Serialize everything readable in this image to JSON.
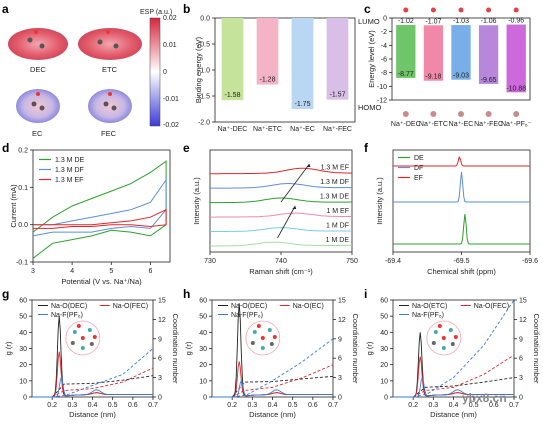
{
  "figure": {
    "watermark": "ybx8.cn",
    "panel_letters": [
      "a",
      "b",
      "c",
      "d",
      "e",
      "f",
      "g",
      "h",
      "i"
    ]
  },
  "panel_a": {
    "molecule_labels": [
      "DEC",
      "ETC",
      "EC",
      "FEC"
    ],
    "colorbar_label": "ESP (a.u.)",
    "colorbar_ticks": [
      "0.02",
      "0.01",
      "0",
      "-0.01",
      "-0.02"
    ]
  },
  "chart_data": [
    {
      "id": "b",
      "type": "bar",
      "categories": [
        "Na⁺-DEC",
        "Na⁺-ETC",
        "Na⁺-EC",
        "Na⁺-FEC"
      ],
      "values": [
        -1.58,
        -1.28,
        -1.75,
        -1.57
      ],
      "value_labels": [
        "-1.58",
        "-1.28",
        "-1.75",
        "-1.57"
      ],
      "colors": [
        "#c5e39a",
        "#f5b3c8",
        "#b9d6f2",
        "#d8bfe8"
      ],
      "ylabel": "Binding energy (eV)",
      "ylim": [
        -2.0,
        0
      ],
      "yticks": [
        "0.0",
        "-0.5",
        "-1.0",
        "-1.5",
        "-2.0"
      ]
    },
    {
      "id": "c",
      "type": "bar",
      "categories": [
        "Na⁺-DEC",
        "Na⁺-ETC",
        "Na⁺-EC",
        "Na⁺-FEC",
        "Na⁺-PF₆⁻"
      ],
      "lumo": [
        -1.02,
        -1.07,
        -1.03,
        -1.06,
        -0.96
      ],
      "homo": [
        -8.77,
        -9.18,
        -9.03,
        -9.65,
        -10.88
      ],
      "lumo_labels": [
        "-1.02",
        "-1.07",
        "-1.03",
        "-1.06",
        "-0.96"
      ],
      "homo_labels": [
        "-8.77",
        "-9.18",
        "-9.03",
        "-9.65",
        "-10.88"
      ],
      "colors": [
        "#5fbf5a",
        "#f07aa0",
        "#6aa6e6",
        "#b07ad8",
        "#c75ad8"
      ],
      "ylabel": "Energy level (eV)",
      "ylim": [
        -12,
        0
      ],
      "yticks": [
        "0",
        "-2",
        "-4",
        "-6",
        "-8",
        "-10",
        "-12"
      ],
      "annotations": [
        "LUMO",
        "HOMO"
      ]
    },
    {
      "id": "d",
      "type": "line",
      "xlabel": "Potential (V vs. Na⁺/Na)",
      "ylabel": "Current (mA)",
      "xlim": [
        3,
        6.5
      ],
      "ylim": [
        -0.1,
        0.2
      ],
      "xticks": [
        "3",
        "4",
        "5",
        "6"
      ],
      "yticks": [
        "-0.1",
        "0.0",
        "0.1",
        "0.2"
      ],
      "series": [
        {
          "name": "1.3 M DE",
          "color": "#2ca02c",
          "upper": [
            [
              3.0,
              -0.02
            ],
            [
              3.5,
              0.02
            ],
            [
              4.0,
              0.05
            ],
            [
              4.5,
              0.07
            ],
            [
              5.0,
              0.09
            ],
            [
              5.5,
              0.11
            ],
            [
              6.0,
              0.14
            ],
            [
              6.4,
              0.17
            ]
          ],
          "lower": [
            [
              6.4,
              0.0
            ],
            [
              6.0,
              -0.03
            ],
            [
              5.5,
              -0.02
            ],
            [
              5.0,
              -0.015
            ],
            [
              4.5,
              -0.03
            ],
            [
              4.0,
              -0.04
            ],
            [
              3.5,
              -0.05
            ],
            [
              3.0,
              -0.09
            ]
          ]
        },
        {
          "name": "1.3 M DF",
          "color": "#5b8fd6",
          "upper": [
            [
              3.0,
              0.0
            ],
            [
              3.5,
              0.0
            ],
            [
              4.0,
              0.01
            ],
            [
              4.5,
              0.02
            ],
            [
              5.0,
              0.03
            ],
            [
              5.5,
              0.04
            ],
            [
              6.0,
              0.06
            ],
            [
              6.4,
              0.12
            ]
          ],
          "lower": [
            [
              6.4,
              0.04
            ],
            [
              6.0,
              -0.01
            ],
            [
              5.5,
              -0.005
            ],
            [
              5.0,
              -0.01
            ],
            [
              4.5,
              -0.02
            ],
            [
              4.0,
              -0.02
            ],
            [
              3.5,
              -0.02
            ],
            [
              3.0,
              -0.03
            ]
          ]
        },
        {
          "name": "1.3 M EF",
          "color": "#e0262b",
          "upper": [
            [
              3.0,
              0.0
            ],
            [
              3.5,
              0.0
            ],
            [
              4.0,
              0.0
            ],
            [
              4.5,
              0.0
            ],
            [
              5.0,
              0.005
            ],
            [
              5.5,
              0.01
            ],
            [
              6.0,
              0.02
            ],
            [
              6.4,
              0.04
            ]
          ],
          "lower": [
            [
              6.4,
              0.0
            ],
            [
              6.0,
              -0.005
            ],
            [
              5.5,
              0.0
            ],
            [
              5.0,
              0.0
            ],
            [
              4.5,
              -0.005
            ],
            [
              4.0,
              -0.005
            ],
            [
              3.5,
              -0.01
            ],
            [
              3.0,
              -0.01
            ]
          ]
        }
      ]
    },
    {
      "id": "e",
      "type": "line",
      "xlabel": "Raman shift (cm⁻¹)",
      "ylabel": "Intensity (a.u.)",
      "xlim": [
        730,
        750
      ],
      "xticks": [
        "730",
        "740",
        "750"
      ],
      "series": [
        {
          "name": "1.3 M EF",
          "color": "#e0262b",
          "offset": 5.0,
          "peak": 743,
          "height": 0.35
        },
        {
          "name": "1.3 M DF",
          "color": "#5b8fd6",
          "offset": 4.0,
          "peak": 741,
          "height": 0.3
        },
        {
          "name": "1.3 M DE",
          "color": "#2ca02c",
          "offset": 3.0,
          "peak": 740,
          "height": 0.3
        },
        {
          "name": "1 M EF",
          "color": "#f08aa8",
          "offset": 2.0,
          "peak": 742,
          "height": 0.25
        },
        {
          "name": "1 M DF",
          "color": "#7ccbe6",
          "offset": 1.0,
          "peak": 740,
          "height": 0.25
        },
        {
          "name": "1 M DE",
          "color": "#a8dca0",
          "offset": 0.0,
          "peak": 739,
          "height": 0.25
        }
      ]
    },
    {
      "id": "f",
      "type": "line",
      "xlabel": "Chemical shift (ppm)",
      "ylabel": "Intensity (a.u.)",
      "xlim": [
        -69.4,
        -69.6
      ],
      "xticks": [
        "-69.4",
        "-69.5",
        "-69.6"
      ],
      "series": [
        {
          "name": "DE",
          "color": "#2ca02c",
          "peak": -69.505,
          "offset": 0
        },
        {
          "name": "DF",
          "color": "#5b8fd6",
          "peak": -69.5,
          "offset": 1
        },
        {
          "name": "EF",
          "color": "#e0262b",
          "peak": -69.497,
          "offset": 2
        }
      ]
    },
    {
      "id": "g",
      "type": "line",
      "xlabel": "Distance (nm)",
      "ylabel": "g (r)",
      "ylabel_right": "Coordination number",
      "xlim": [
        0.1,
        0.7
      ],
      "ylim": [
        0,
        60
      ],
      "ylim_right": [
        0,
        15
      ],
      "xticks": [
        "0.2",
        "0.3",
        "0.4",
        "0.5",
        "0.6",
        "0.7"
      ],
      "yticks": [
        "0",
        "10",
        "20",
        "30",
        "40",
        "50",
        "60"
      ],
      "yticks_right": [
        "0",
        "3",
        "6",
        "9",
        "12",
        "15"
      ],
      "legend": [
        "Na-O(DEC)",
        "Na-O(FEC)",
        "Na-F(PF₆)"
      ],
      "series": [
        {
          "name": "Na-O(DEC)",
          "color": "#222222",
          "peak": 0.235,
          "height": 50,
          "cn": [
            [
              0.2,
              0
            ],
            [
              0.26,
              2.0
            ],
            [
              0.4,
              2.1
            ],
            [
              0.55,
              2.6
            ],
            [
              0.7,
              3.3
            ]
          ]
        },
        {
          "name": "Na-O(FEC)",
          "color": "#e0262b",
          "peak": 0.235,
          "height": 28,
          "cn": [
            [
              0.2,
              0
            ],
            [
              0.26,
              1.0
            ],
            [
              0.4,
              1.3
            ],
            [
              0.55,
              2.3
            ],
            [
              0.7,
              4.5
            ]
          ]
        },
        {
          "name": "Na-F(PF₆)",
          "color": "#3a7bd5",
          "peak": 0.245,
          "height": 12,
          "cn": [
            [
              0.2,
              0
            ],
            [
              0.27,
              0.3
            ],
            [
              0.4,
              1.8
            ],
            [
              0.55,
              3.5
            ],
            [
              0.7,
              7.5
            ]
          ]
        }
      ]
    },
    {
      "id": "h",
      "type": "line",
      "xlabel": "Distance (nm)",
      "ylabel": "g (r)",
      "ylabel_right": "Coordination number",
      "xlim": [
        0.1,
        0.7
      ],
      "ylim": [
        0,
        60
      ],
      "ylim_right": [
        0,
        15
      ],
      "xticks": [
        "0.2",
        "0.3",
        "0.4",
        "0.5",
        "0.6",
        "0.7"
      ],
      "yticks": [
        "0",
        "10",
        "20",
        "30",
        "40",
        "50",
        "60"
      ],
      "yticks_right": [
        "0",
        "3",
        "6",
        "9",
        "12",
        "15"
      ],
      "legend": [
        "Na-O(DEC)",
        "Na-O(EC)",
        "Na-F(PF₆)"
      ],
      "series": [
        {
          "name": "Na-O(DEC)",
          "color": "#222222",
          "peak": 0.235,
          "height": 58,
          "cn": [
            [
              0.2,
              0
            ],
            [
              0.26,
              2.3
            ],
            [
              0.4,
              2.4
            ],
            [
              0.55,
              2.8
            ],
            [
              0.7,
              3.2
            ]
          ]
        },
        {
          "name": "Na-O(EC)",
          "color": "#e0262b",
          "peak": 0.235,
          "height": 22,
          "cn": [
            [
              0.2,
              0
            ],
            [
              0.26,
              1.0
            ],
            [
              0.4,
              1.5
            ],
            [
              0.55,
              3.0
            ],
            [
              0.7,
              5.0
            ]
          ]
        },
        {
          "name": "Na-F(PF₆)",
          "color": "#3a7bd5",
          "peak": 0.245,
          "height": 10,
          "cn": [
            [
              0.2,
              0
            ],
            [
              0.27,
              0.3
            ],
            [
              0.4,
              2.5
            ],
            [
              0.55,
              5.5
            ],
            [
              0.7,
              9.0
            ]
          ]
        }
      ]
    },
    {
      "id": "i",
      "type": "line",
      "xlabel": "Distance (nm)",
      "ylabel": "g (r)",
      "ylabel_right": "Coordination number",
      "xlim": [
        0.1,
        0.7
      ],
      "ylim": [
        0,
        60
      ],
      "ylim_right": [
        0,
        15
      ],
      "xticks": [
        "0.2",
        "0.3",
        "0.4",
        "0.5",
        "0.6",
        "0.7"
      ],
      "yticks": [
        "0",
        "10",
        "20",
        "30",
        "40",
        "50",
        "60"
      ],
      "yticks_right": [
        "0",
        "3",
        "6",
        "9",
        "12",
        "15"
      ],
      "legend": [
        "Na-O(ETC)",
        "Na-O(FEC)",
        "Na-F(PF₆)"
      ],
      "series": [
        {
          "name": "Na-O(ETC)",
          "color": "#222222",
          "peak": 0.235,
          "height": 40,
          "cn": [
            [
              0.2,
              0
            ],
            [
              0.26,
              1.5
            ],
            [
              0.4,
              1.7
            ],
            [
              0.55,
              2.3
            ],
            [
              0.7,
              3.0
            ]
          ]
        },
        {
          "name": "Na-O(FEC)",
          "color": "#e0262b",
          "peak": 0.235,
          "height": 25,
          "cn": [
            [
              0.2,
              0
            ],
            [
              0.26,
              1.0
            ],
            [
              0.4,
              1.5
            ],
            [
              0.55,
              3.5
            ],
            [
              0.7,
              6.5
            ]
          ]
        },
        {
          "name": "Na-F(PF₆)",
          "color": "#3a7bd5",
          "peak": 0.245,
          "height": 12,
          "cn": [
            [
              0.2,
              0
            ],
            [
              0.27,
              0.5
            ],
            [
              0.4,
              3.0
            ],
            [
              0.55,
              8.0
            ],
            [
              0.7,
              15.0
            ]
          ]
        }
      ]
    }
  ]
}
